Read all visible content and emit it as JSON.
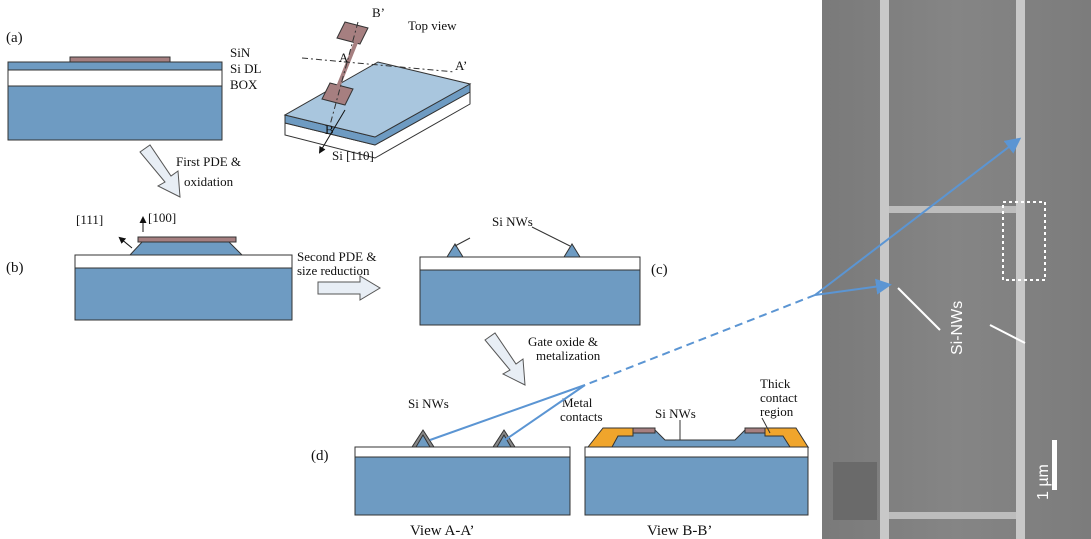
{
  "panel_a": {
    "label": "(a)",
    "layers": [
      "SiN",
      "Si DL",
      "BOX"
    ],
    "top_view": {
      "title": "Top view",
      "labels": [
        "A",
        "A’",
        "B",
        "B’"
      ],
      "direction": "Si [110]"
    }
  },
  "step_1": [
    "First PDE &",
    "oxidation"
  ],
  "panel_b": {
    "label": "(b)",
    "facets": [
      "[111]",
      "[100]"
    ]
  },
  "step_2": [
    "Second PDE &",
    "size reduction"
  ],
  "panel_c": {
    "label": "(c)",
    "nanowires": "Si NWs"
  },
  "step_3": [
    "Gate oxide &",
    "metalization"
  ],
  "panel_d": {
    "label": "(d)",
    "view_a": {
      "nanowires": "Si NWs",
      "caption": "View A-A’"
    },
    "view_b": {
      "contacts": [
        "Metal",
        "contacts"
      ],
      "nanowires": "Si NWs",
      "thick": [
        "Thick",
        "contact",
        "region"
      ],
      "caption": "View B-B’"
    }
  },
  "sem": {
    "label": "Si-NWs",
    "scale": "1 µm"
  }
}
